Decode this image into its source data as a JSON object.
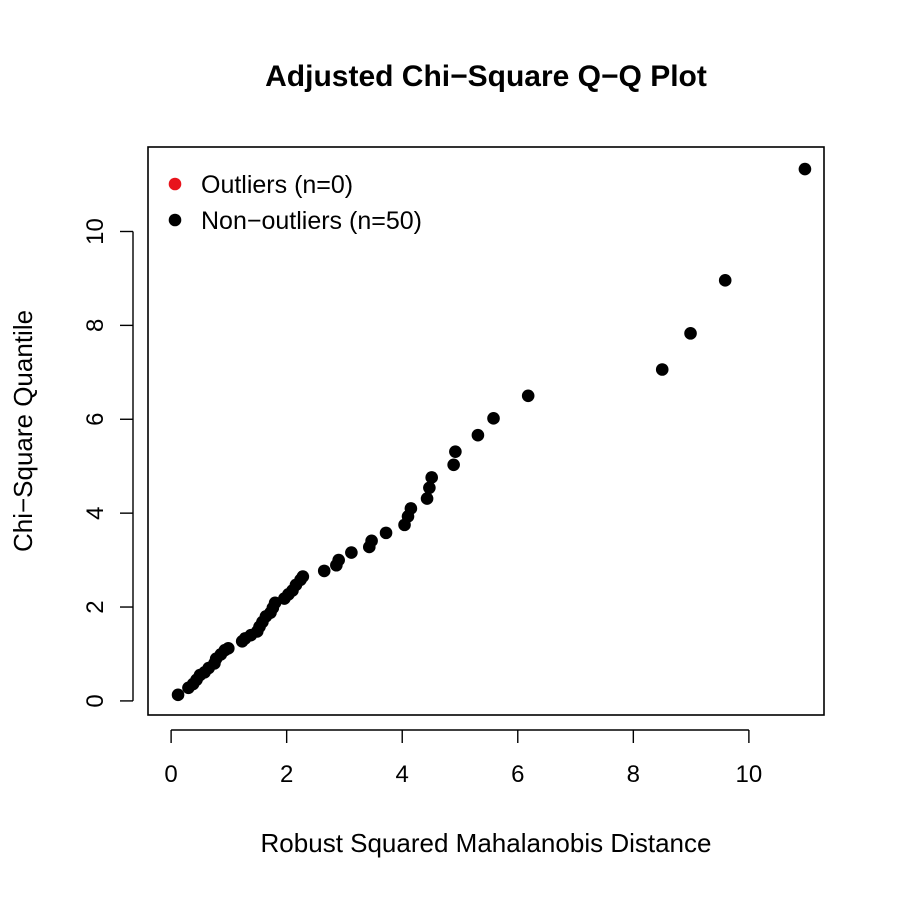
{
  "chart_data": {
    "type": "scatter",
    "title": "Adjusted Chi−Square Q−Q Plot",
    "xlabel": "Robust Squared Mahalanobis Distance",
    "ylabel": "Chi−Square Quantile",
    "xlim": [
      -0.4,
      11.3
    ],
    "ylim": [
      -0.3,
      11.8
    ],
    "xticks": [
      0,
      2,
      4,
      6,
      8,
      10
    ],
    "yticks": [
      0,
      2,
      4,
      6,
      8,
      10
    ],
    "legend_position": "top-left",
    "series": [
      {
        "name": "Outliers (n=0)",
        "color": "#e8141c",
        "points": []
      },
      {
        "name": "Non−outliers (n=50)",
        "color": "#000000",
        "points": [
          [
            0.12,
            0.13
          ],
          [
            0.3,
            0.28
          ],
          [
            0.38,
            0.36
          ],
          [
            0.44,
            0.45
          ],
          [
            0.5,
            0.55
          ],
          [
            0.58,
            0.61
          ],
          [
            0.65,
            0.7
          ],
          [
            0.75,
            0.8
          ],
          [
            0.78,
            0.9
          ],
          [
            0.86,
            0.99
          ],
          [
            0.93,
            1.08
          ],
          [
            0.99,
            1.12
          ],
          [
            1.23,
            1.27
          ],
          [
            1.28,
            1.33
          ],
          [
            1.38,
            1.4
          ],
          [
            1.49,
            1.48
          ],
          [
            1.53,
            1.58
          ],
          [
            1.58,
            1.68
          ],
          [
            1.64,
            1.8
          ],
          [
            1.72,
            1.88
          ],
          [
            1.76,
            1.98
          ],
          [
            1.8,
            2.09
          ],
          [
            1.96,
            2.18
          ],
          [
            2.03,
            2.27
          ],
          [
            2.1,
            2.35
          ],
          [
            2.16,
            2.47
          ],
          [
            2.24,
            2.58
          ],
          [
            2.28,
            2.65
          ],
          [
            2.65,
            2.77
          ],
          [
            2.86,
            2.89
          ],
          [
            2.9,
            3.0
          ],
          [
            3.12,
            3.16
          ],
          [
            3.43,
            3.28
          ],
          [
            3.47,
            3.41
          ],
          [
            3.72,
            3.58
          ],
          [
            4.04,
            3.75
          ],
          [
            4.1,
            3.93
          ],
          [
            4.15,
            4.1
          ],
          [
            4.43,
            4.31
          ],
          [
            4.47,
            4.54
          ],
          [
            4.51,
            4.76
          ],
          [
            4.89,
            5.03
          ],
          [
            4.92,
            5.31
          ],
          [
            5.31,
            5.66
          ],
          [
            5.58,
            6.02
          ],
          [
            6.18,
            6.5
          ],
          [
            8.5,
            7.06
          ],
          [
            8.99,
            7.83
          ],
          [
            9.59,
            8.96
          ],
          [
            10.97,
            11.33
          ]
        ]
      }
    ]
  }
}
